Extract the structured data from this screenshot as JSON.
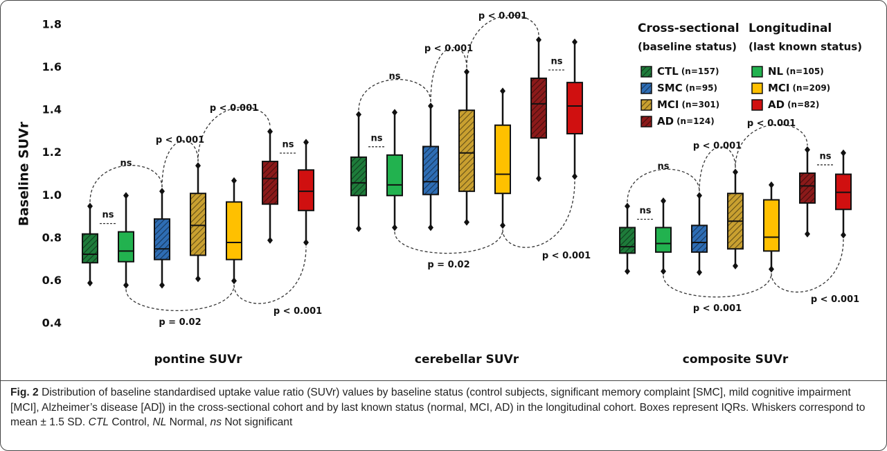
{
  "chart_data": {
    "type": "box",
    "ylabel": "Baseline SUVr",
    "categories": [
      "pontine SUVr",
      "cerebellar SUVr",
      "composite SUVr"
    ],
    "ylim": [
      0.4,
      1.8
    ],
    "yticks": [
      0.4,
      0.6,
      0.8,
      {
        "value": 1.0,
        "label": "1.0"
      },
      1.2,
      1.4,
      1.6,
      1.8
    ],
    "legend_groups": [
      {
        "title": "Cross-sectional",
        "subtitle": "(baseline status)"
      },
      {
        "title": "Longitudinal",
        "subtitle": "(last known status)"
      }
    ],
    "series": [
      {
        "name": "CTL",
        "n_label": "(n=157)",
        "color": "#1e7b3a",
        "hatched": true,
        "legend_group": 0,
        "values": [
          {
            "min": 0.59,
            "q1": 0.685,
            "median": 0.725,
            "q3": 0.82,
            "max": 0.95
          },
          {
            "min": 0.845,
            "q1": 1.0,
            "median": 1.06,
            "q3": 1.18,
            "max": 1.38
          },
          {
            "min": 0.645,
            "q1": 0.73,
            "median": 0.76,
            "q3": 0.85,
            "max": 0.95
          }
        ]
      },
      {
        "name": "NL",
        "n_label": "(n=105)",
        "color": "#22b24f",
        "hatched": false,
        "legend_group": 1,
        "values": [
          {
            "min": 0.58,
            "q1": 0.69,
            "median": 0.74,
            "q3": 0.83,
            "max": 1.0
          },
          {
            "min": 0.85,
            "q1": 1.0,
            "median": 1.05,
            "q3": 1.19,
            "max": 1.39
          },
          {
            "min": 0.645,
            "q1": 0.735,
            "median": 0.775,
            "q3": 0.85,
            "max": 0.975
          }
        ]
      },
      {
        "name": "SMC",
        "n_label": "(n=95)",
        "color": "#2e6db4",
        "hatched": true,
        "legend_group": 0,
        "values": [
          {
            "min": 0.58,
            "q1": 0.7,
            "median": 0.75,
            "q3": 0.89,
            "max": 1.02
          },
          {
            "min": 0.85,
            "q1": 1.005,
            "median": 1.065,
            "q3": 1.23,
            "max": 1.42
          },
          {
            "min": 0.64,
            "q1": 0.735,
            "median": 0.78,
            "q3": 0.86,
            "max": 1.0
          }
        ]
      },
      {
        "name": "MCI",
        "n_label": "(n=301)",
        "color": "#c9a030",
        "hatched": true,
        "legend_group": 0,
        "values": [
          {
            "min": 0.61,
            "q1": 0.72,
            "median": 0.86,
            "q3": 1.01,
            "max": 1.14
          },
          {
            "min": 0.875,
            "q1": 1.02,
            "median": 1.2,
            "q3": 1.4,
            "max": 1.58
          },
          {
            "min": 0.67,
            "q1": 0.75,
            "median": 0.88,
            "q3": 1.01,
            "max": 1.11
          }
        ]
      },
      {
        "name": "MCI",
        "n_label": "(n=209)",
        "color": "#ffc000",
        "hatched": false,
        "legend_group": 1,
        "values": [
          {
            "min": 0.6,
            "q1": 0.7,
            "median": 0.78,
            "q3": 0.97,
            "max": 1.07
          },
          {
            "min": 0.86,
            "q1": 1.01,
            "median": 1.1,
            "q3": 1.33,
            "max": 1.49
          },
          {
            "min": 0.655,
            "q1": 0.74,
            "median": 0.805,
            "q3": 0.98,
            "max": 1.05
          }
        ]
      },
      {
        "name": "AD",
        "n_label": "(n=124)",
        "color": "#8b1a1a",
        "hatched": true,
        "legend_group": 0,
        "values": [
          {
            "min": 0.79,
            "q1": 0.96,
            "median": 1.08,
            "q3": 1.16,
            "max": 1.3
          },
          {
            "min": 1.08,
            "q1": 1.27,
            "median": 1.43,
            "q3": 1.55,
            "max": 1.73
          },
          {
            "min": 0.82,
            "q1": 0.965,
            "median": 1.045,
            "q3": 1.105,
            "max": 1.215
          }
        ]
      },
      {
        "name": "AD",
        "n_label": "(n=82)",
        "color": "#d01010",
        "hatched": false,
        "legend_group": 1,
        "values": [
          {
            "min": 0.78,
            "q1": 0.93,
            "median": 1.02,
            "q3": 1.12,
            "max": 1.25
          },
          {
            "min": 1.09,
            "q1": 1.29,
            "median": 1.42,
            "q3": 1.53,
            "max": 1.72
          },
          {
            "min": 0.815,
            "q1": 0.935,
            "median": 1.015,
            "q3": 1.1,
            "max": 1.2
          }
        ]
      }
    ],
    "annotations": [
      [
        "ns",
        "ns",
        "p < 0.001",
        "p < 0.001",
        "ns",
        "p = 0.02",
        "p < 0.001"
      ],
      [
        "ns",
        "ns",
        "p < 0.001",
        "p < 0.001",
        "ns",
        "p = 0.02",
        "p < 0.001"
      ],
      [
        "ns",
        "ns",
        "p < 0.001",
        "p < 0.001",
        "ns",
        "p < 0.001",
        "p < 0.001"
      ]
    ]
  },
  "caption": {
    "label": "Fig. 2",
    "segments": [
      {
        "text": " Distribution of baseline standardised uptake value ratio (SUVr) values by baseline status (control subjects, significant memory complaint [SMC], mild cognitive impairment [MCI], Alzheimer’s disease [AD]) in the cross-sectional cohort and by last known status (normal, MCI, AD) in the longitudinal cohort. Boxes represent IQRs. Whiskers correspond to mean ± 1.5 SD. ",
        "italic": false
      },
      {
        "text": "CTL",
        "italic": true
      },
      {
        "text": " Control, ",
        "italic": false
      },
      {
        "text": "NL",
        "italic": true
      },
      {
        "text": " Normal, ",
        "italic": false
      },
      {
        "text": "ns",
        "italic": true
      },
      {
        "text": " Not significant",
        "italic": false
      }
    ]
  }
}
